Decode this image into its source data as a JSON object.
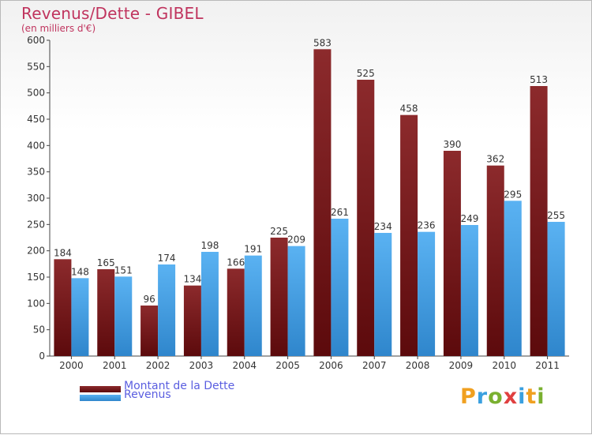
{
  "chart_data": {
    "type": "bar",
    "title": "Revenus/Dette - GIBEL",
    "subtitle": "(en milliers d'€)",
    "categories": [
      "2000",
      "2001",
      "2002",
      "2003",
      "2004",
      "2005",
      "2006",
      "2007",
      "2008",
      "2009",
      "2010",
      "2011"
    ],
    "series": [
      {
        "name": "Montant de la Dette",
        "values": [
          184,
          165,
          96,
          134,
          166,
          225,
          583,
          525,
          458,
          390,
          362,
          513
        ],
        "color": "#7a1a1c"
      },
      {
        "name": "Revenus",
        "values": [
          148,
          151,
          174,
          198,
          191,
          209,
          261,
          234,
          236,
          249,
          295,
          255
        ],
        "color": "#4ea6ec"
      }
    ],
    "ylim": [
      0,
      600
    ],
    "yticks": [
      0,
      50,
      100,
      150,
      200,
      250,
      300,
      350,
      400,
      450,
      500,
      550,
      600
    ],
    "grid": false,
    "legend_position": "bottom-left"
  },
  "logo": {
    "letters": [
      "P",
      "r",
      "o",
      "x",
      "i",
      "t",
      "i"
    ],
    "colors": [
      "#f0a020",
      "#3aa0e0",
      "#7ab030",
      "#e04040",
      "#3aa0e0",
      "#f0a020",
      "#7ab030"
    ]
  }
}
